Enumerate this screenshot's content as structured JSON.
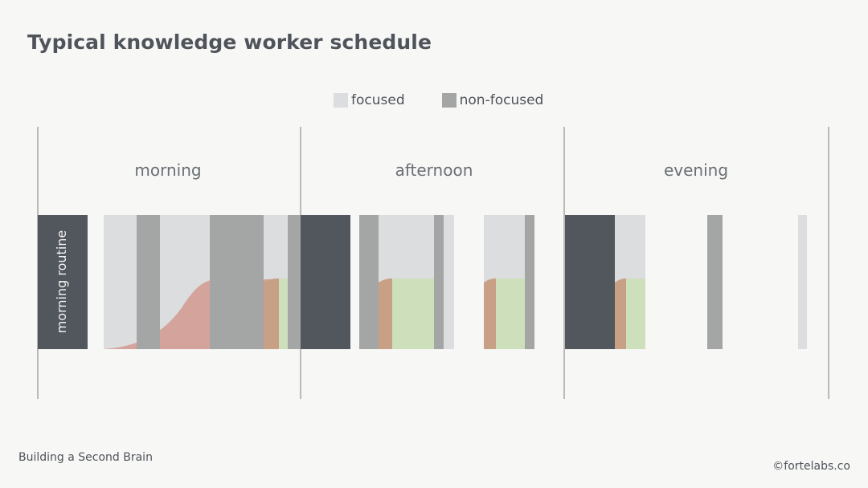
{
  "title": "Typical knowledge worker schedule",
  "legend": {
    "focused": "focused",
    "non_focused": "non-focused"
  },
  "periods": {
    "morning": "morning",
    "afternoon": "afternoon",
    "evening": "evening"
  },
  "routine_label": "morning routine",
  "footer": {
    "left": "Building a Second Brain",
    "right": "©fortelabs.co"
  },
  "colors": {
    "focused": "#dcdddf",
    "non_focused": "#a4a5a5",
    "routine": "#52565d",
    "ramp_red": "#d4a39c",
    "ramp_orange": "#c8a085",
    "flow_green": "#cde0bb",
    "divider": "#9a9a9a",
    "text": "#4f535a"
  }
}
